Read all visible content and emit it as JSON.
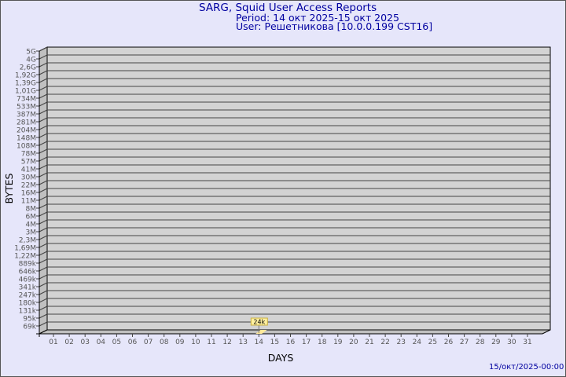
{
  "header": {
    "title": "SARG, Squid User Access Reports",
    "period": "Period: 14 окт 2025-15 окт 2025",
    "user": "User: Решетникова [10.0.0.199 CST16]"
  },
  "footer": {
    "timestamp": "15/окт/2025-00:00"
  },
  "colors": {
    "background": "#e6e6fa",
    "plot": "#d3d3d3",
    "bar": "#ffe99a",
    "title": "#0000a0"
  },
  "chart_data": {
    "type": "bar",
    "xlabel": "DAYS",
    "ylabel": "BYTES",
    "y_scale": "log",
    "ytick_labels": [
      "5G",
      "4G",
      "2,6G",
      "1,92G",
      "1,39G",
      "1,01G",
      "734M",
      "533M",
      "387M",
      "281M",
      "204M",
      "148M",
      "108M",
      "78M",
      "57M",
      "41M",
      "30M",
      "22M",
      "16M",
      "11M",
      "8M",
      "6M",
      "4M",
      "3M",
      "2,3M",
      "1,69M",
      "1,22M",
      "889k",
      "646k",
      "469k",
      "341k",
      "247k",
      "180k",
      "131k",
      "95k",
      "69k"
    ],
    "categories": [
      "01",
      "02",
      "03",
      "04",
      "05",
      "06",
      "07",
      "08",
      "09",
      "10",
      "11",
      "12",
      "13",
      "14",
      "15",
      "16",
      "17",
      "18",
      "19",
      "20",
      "21",
      "22",
      "23",
      "24",
      "25",
      "26",
      "27",
      "28",
      "29",
      "30",
      "31"
    ],
    "bars": [
      {
        "day": "14",
        "value": 24000,
        "label": "24k"
      }
    ],
    "grid": true
  }
}
